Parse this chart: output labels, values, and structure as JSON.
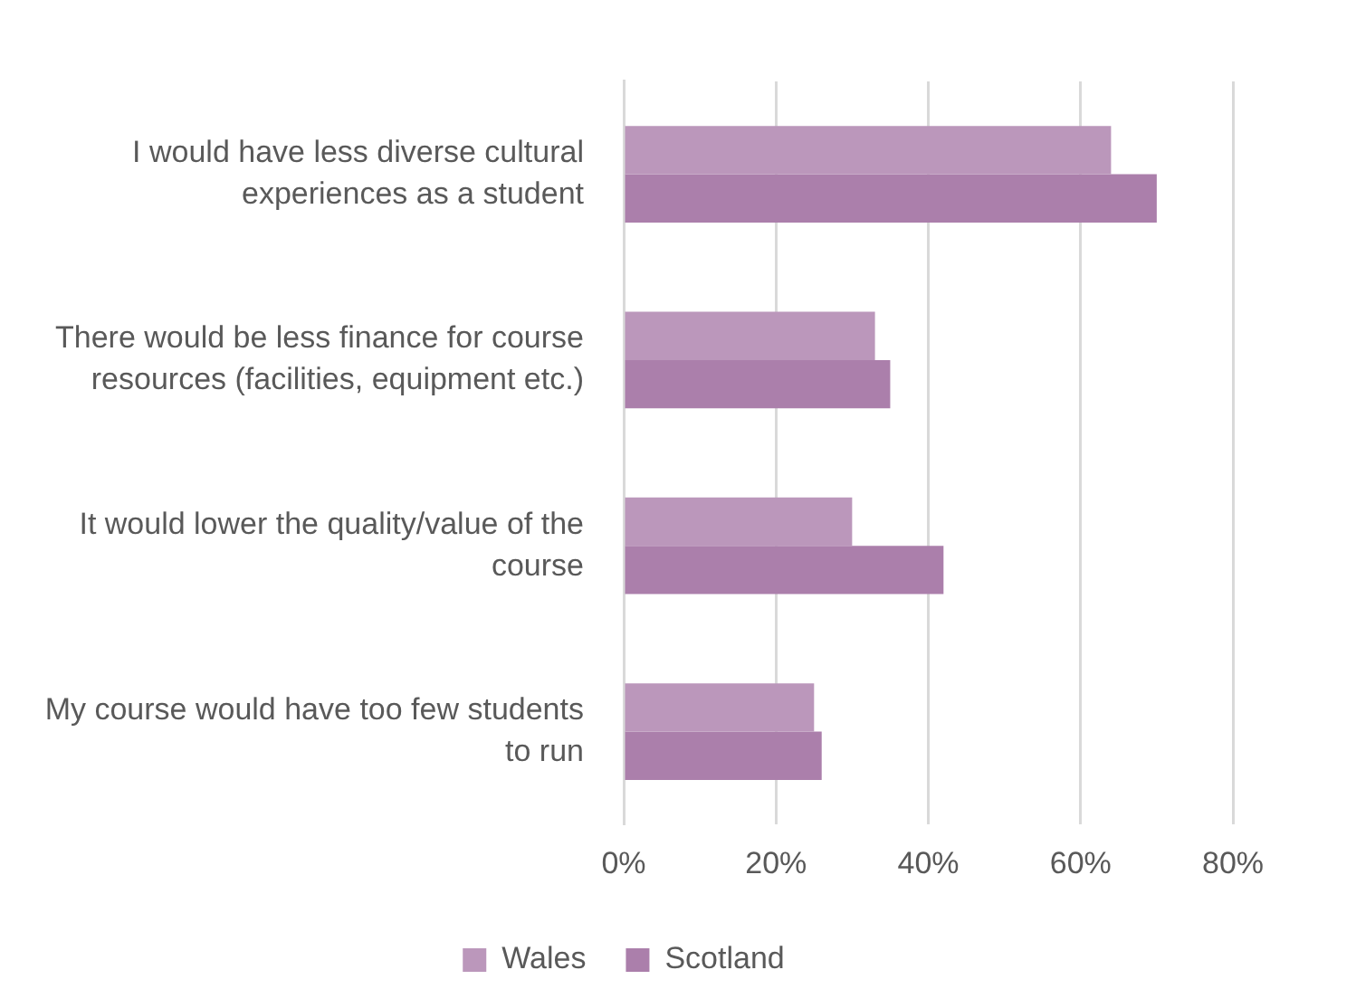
{
  "chart_data": {
    "type": "bar",
    "orientation": "horizontal",
    "categories": [
      "I would have less diverse cultural experiences as a student",
      "There would be less finance for course resources (facilities, equipment etc.)",
      "It would lower the quality/value of the course",
      "My course would have too few students to run"
    ],
    "series": [
      {
        "name": "Wales",
        "color": "#bb97bb",
        "values": [
          64,
          33,
          30,
          25
        ]
      },
      {
        "name": "Scotland",
        "color": "#ab7fab",
        "values": [
          70,
          35,
          42,
          26
        ]
      }
    ],
    "xlim": [
      0,
      80
    ],
    "xticks": [
      {
        "value": 0,
        "label": "0%"
      },
      {
        "value": 20,
        "label": "20%"
      },
      {
        "value": 40,
        "label": "40%"
      },
      {
        "value": 60,
        "label": "60%"
      },
      {
        "value": 80,
        "label": "80%"
      }
    ],
    "grid": "x",
    "legend": "bottom"
  }
}
